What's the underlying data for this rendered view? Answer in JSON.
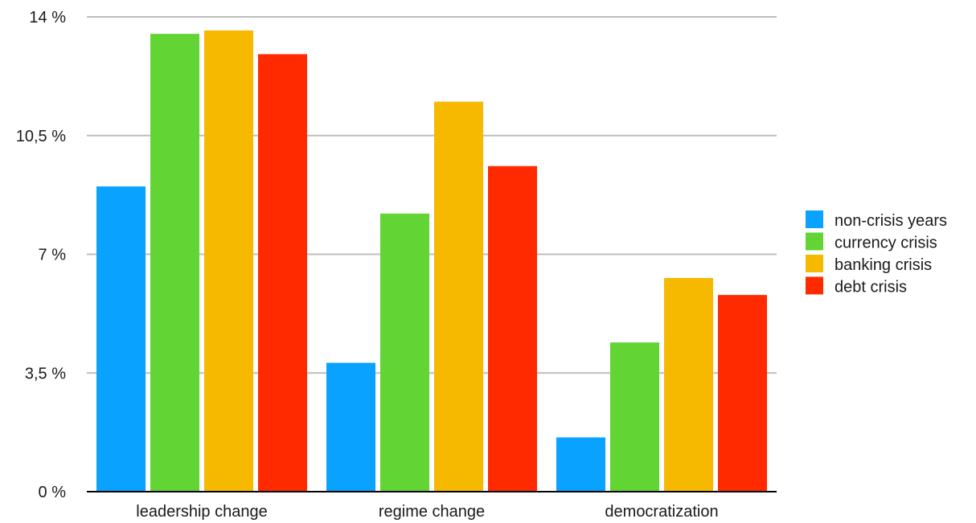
{
  "chart_data": {
    "type": "bar",
    "title": "",
    "xlabel": "",
    "ylabel": "",
    "categories": [
      "leadership change",
      "regime change",
      "democratization"
    ],
    "series": [
      {
        "name": "non-crisis years",
        "color": "#0aa2ff",
        "values": [
          9.0,
          3.8,
          1.6
        ]
      },
      {
        "name": "currency crisis",
        "color": "#62d434",
        "values": [
          13.5,
          8.2,
          4.4
        ]
      },
      {
        "name": "banking crisis",
        "color": "#f6b900",
        "values": [
          13.6,
          11.5,
          6.3
        ]
      },
      {
        "name": "debt crisis",
        "color": "#ff2a00",
        "values": [
          12.9,
          9.6,
          5.8
        ]
      }
    ],
    "ylim": [
      0,
      14
    ],
    "yticks": [
      0,
      3.5,
      7,
      10.5,
      14
    ],
    "ytick_labels": [
      "0 %",
      "3,5 %",
      "7 %",
      "10,5 %",
      "14 %"
    ],
    "grid": true,
    "legend_position": "right"
  }
}
